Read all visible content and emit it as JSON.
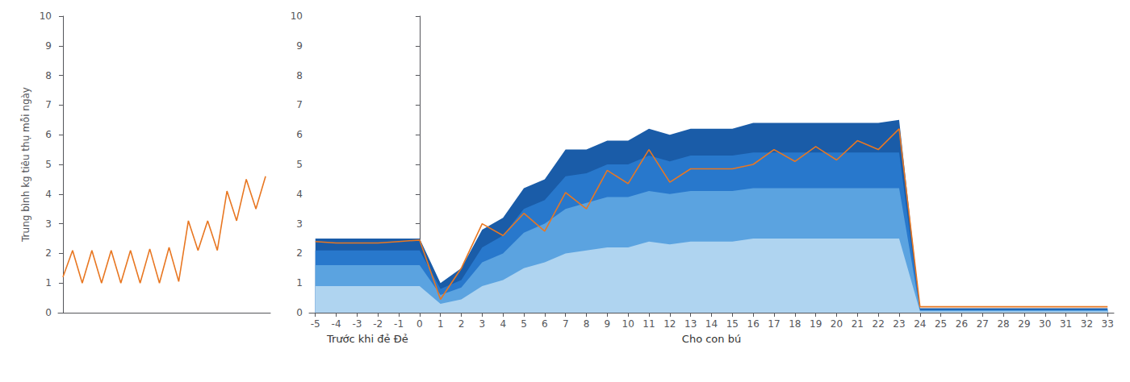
{
  "chart_data": [
    {
      "type": "line",
      "ylabel": "Trung bình kg tiêu thụ mỗi ngày",
      "x": [
        0,
        1,
        2,
        3,
        4,
        5,
        6,
        7,
        8,
        9,
        10,
        11,
        12,
        13,
        14,
        15,
        16,
        17,
        18,
        19,
        20,
        21
      ],
      "values": [
        1.2,
        2.1,
        1.0,
        2.1,
        1.0,
        2.1,
        1.0,
        2.1,
        1.0,
        2.15,
        1.0,
        2.2,
        1.05,
        3.1,
        2.1,
        3.1,
        2.1,
        4.1,
        3.1,
        4.5,
        3.5,
        4.6
      ],
      "color": "#E87722",
      "xlim": [
        -0.5,
        21.5
      ],
      "ylim": [
        0,
        10
      ],
      "yticks": [
        0,
        1,
        2,
        3,
        4,
        5,
        6,
        7,
        8,
        9,
        10
      ],
      "tick_labels": "y",
      "grid": false
    },
    {
      "type": "area",
      "x": [
        -5,
        -4,
        -3,
        -2,
        -1,
        0,
        1,
        2,
        3,
        4,
        5,
        6,
        7,
        8,
        9,
        10,
        11,
        12,
        13,
        14,
        15,
        16,
        17,
        18,
        19,
        20,
        21,
        22,
        23,
        24,
        25,
        26,
        27,
        28,
        29,
        30,
        31,
        32,
        33
      ],
      "series": [
        {
          "type": "area",
          "color": "#1a5ca8",
          "values": [
            2.5,
            2.5,
            2.5,
            2.5,
            2.5,
            2.5,
            1.0,
            1.5,
            2.8,
            3.2,
            4.2,
            4.5,
            5.5,
            5.5,
            5.8,
            5.8,
            6.2,
            6.0,
            6.2,
            6.2,
            6.2,
            6.4,
            6.4,
            6.4,
            6.4,
            6.4,
            6.4,
            6.4,
            6.5,
            0.15,
            0.15,
            0.15,
            0.15,
            0.15,
            0.15,
            0.15,
            0.15,
            0.15,
            0.15
          ]
        },
        {
          "type": "area",
          "color": "#2878cc",
          "values": [
            2.1,
            2.1,
            2.1,
            2.1,
            2.1,
            2.1,
            0.8,
            1.1,
            2.2,
            2.6,
            3.5,
            3.8,
            4.6,
            4.7,
            5.0,
            5.0,
            5.3,
            5.1,
            5.3,
            5.3,
            5.3,
            5.4,
            5.4,
            5.4,
            5.4,
            5.4,
            5.4,
            5.4,
            5.4,
            0.1,
            0.1,
            0.1,
            0.1,
            0.1,
            0.1,
            0.1,
            0.1,
            0.1,
            0.1
          ]
        },
        {
          "type": "area",
          "color": "#5ba3e0",
          "values": [
            1.6,
            1.6,
            1.6,
            1.6,
            1.6,
            1.6,
            0.6,
            0.85,
            1.7,
            2.0,
            2.7,
            3.0,
            3.5,
            3.7,
            3.9,
            3.9,
            4.1,
            4.0,
            4.1,
            4.1,
            4.1,
            4.2,
            4.2,
            4.2,
            4.2,
            4.2,
            4.2,
            4.2,
            4.2,
            0.08,
            0.08,
            0.08,
            0.08,
            0.08,
            0.08,
            0.08,
            0.08,
            0.08,
            0.08
          ]
        },
        {
          "type": "area",
          "color": "#afd4f0",
          "values": [
            0.9,
            0.9,
            0.9,
            0.9,
            0.9,
            0.9,
            0.3,
            0.45,
            0.9,
            1.1,
            1.5,
            1.7,
            2.0,
            2.1,
            2.2,
            2.2,
            2.4,
            2.3,
            2.4,
            2.4,
            2.4,
            2.5,
            2.5,
            2.5,
            2.5,
            2.5,
            2.5,
            2.5,
            2.5,
            0.05,
            0.05,
            0.05,
            0.05,
            0.05,
            0.05,
            0.05,
            0.05,
            0.05,
            0.05
          ]
        },
        {
          "type": "line",
          "color": "#E87722",
          "values": [
            2.4,
            2.35,
            2.35,
            2.35,
            2.4,
            2.45,
            0.45,
            1.5,
            3.0,
            2.6,
            3.35,
            2.75,
            4.05,
            3.5,
            4.8,
            4.35,
            5.5,
            4.4,
            4.85,
            4.85,
            4.85,
            5.0,
            5.5,
            5.1,
            5.6,
            5.15,
            5.8,
            5.5,
            6.2,
            0.2,
            0.2,
            0.2,
            0.2,
            0.2,
            0.2,
            0.2,
            0.2,
            0.2,
            0.2
          ]
        }
      ],
      "xlim": [
        -5.3,
        33.3
      ],
      "xticks": [
        -5,
        -4,
        -3,
        -2,
        -1,
        0,
        1,
        2,
        3,
        4,
        5,
        6,
        7,
        8,
        9,
        10,
        11,
        12,
        13,
        14,
        15,
        16,
        17,
        18,
        19,
        20,
        21,
        22,
        23,
        24,
        25,
        26,
        27,
        28,
        29,
        30,
        31,
        32,
        33
      ],
      "ylim": [
        0,
        10
      ],
      "yticks": [
        0,
        1,
        2,
        3,
        4,
        5,
        6,
        7,
        8,
        9,
        10
      ],
      "annotations": [
        {
          "text": "Trước khi đẻ Đẻ",
          "x": -2.5
        },
        {
          "text": "Cho con bú",
          "x": 14
        }
      ],
      "stacked": false,
      "grid": false
    }
  ]
}
